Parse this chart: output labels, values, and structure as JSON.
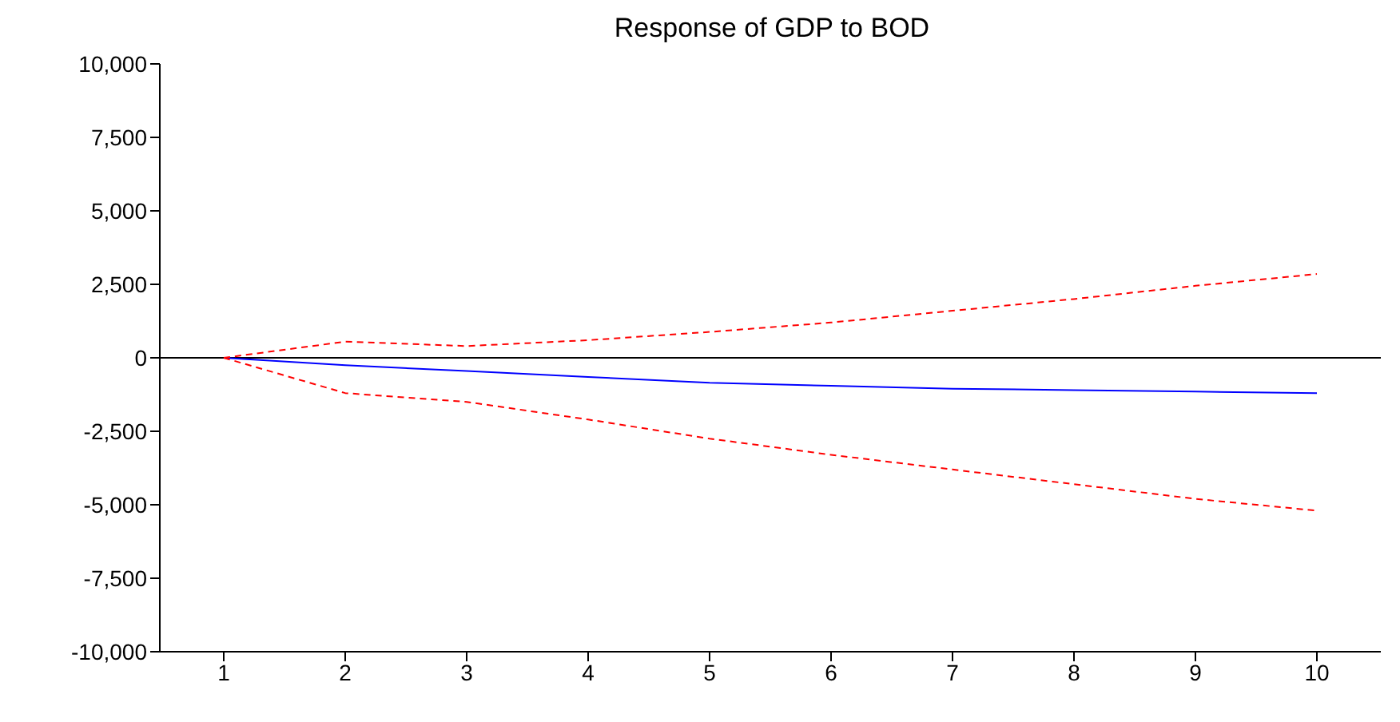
{
  "chart_data": {
    "type": "line",
    "title": "Response of GDP to BOD",
    "categories": [
      "1",
      "2",
      "3",
      "4",
      "5",
      "6",
      "7",
      "8",
      "9",
      "10"
    ],
    "series": [
      {
        "color": "#0000ff",
        "line_style": "solid",
        "values": [
          0,
          -250,
          -450,
          -650,
          -850,
          -950,
          -1050,
          -1100,
          -1150,
          -1200
        ]
      },
      {
        "color": "#ff0000",
        "line_style": "dashed",
        "values": [
          0,
          550,
          400,
          600,
          880,
          1200,
          1600,
          2000,
          2450,
          2850
        ]
      },
      {
        "color": "#ff0000",
        "line_style": "dashed",
        "values": [
          0,
          -1200,
          -1500,
          -2100,
          -2750,
          -3300,
          -3800,
          -4300,
          -4800,
          -5200
        ]
      }
    ],
    "ylim": [
      -10000,
      10000
    ],
    "yticks": [
      {
        "value": -10000,
        "label": "-10,000"
      },
      {
        "value": -7500,
        "label": "-7,500"
      },
      {
        "value": -5000,
        "label": "-5,000"
      },
      {
        "value": -2500,
        "label": "-2,500"
      },
      {
        "value": 0,
        "label": "0"
      },
      {
        "value": 2500,
        "label": "2,500"
      },
      {
        "value": 5000,
        "label": "5,000"
      },
      {
        "value": 7500,
        "label": "7,500"
      },
      {
        "value": 10000,
        "label": "10,000"
      }
    ],
    "ref_lines": [
      {
        "axis": "y",
        "value": 0,
        "color": "#000000"
      }
    ],
    "grid": false,
    "legend": false,
    "marker": "none"
  }
}
